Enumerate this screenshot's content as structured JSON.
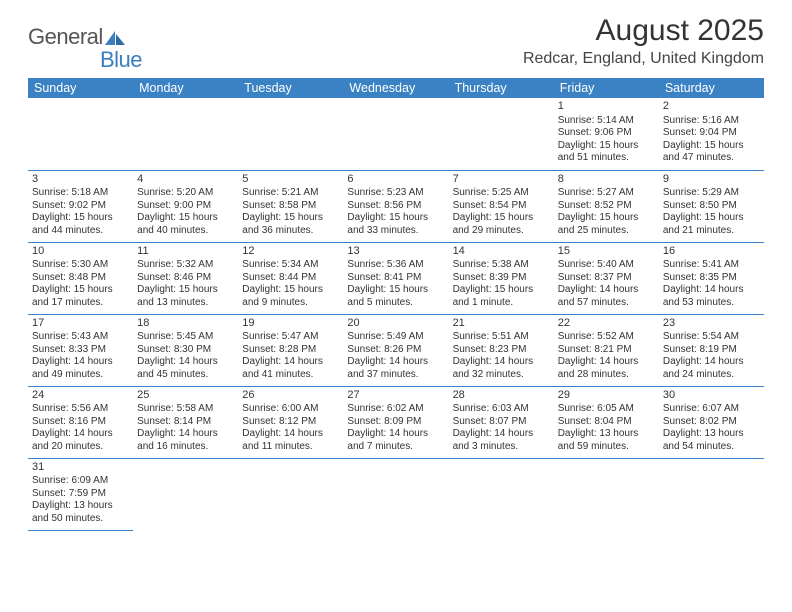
{
  "logo": {
    "name": "General",
    "suffix": "Blue"
  },
  "title": "August 2025",
  "location": "Redcar, England, United Kingdom",
  "colors": {
    "header_bg": "#3b82c4",
    "header_fg": "#ffffff",
    "border": "#3b82c4",
    "text": "#333333"
  },
  "weekdays": [
    "Sunday",
    "Monday",
    "Tuesday",
    "Wednesday",
    "Thursday",
    "Friday",
    "Saturday"
  ],
  "weeks": [
    [
      null,
      null,
      null,
      null,
      null,
      {
        "n": "1",
        "sr": "5:14 AM",
        "ss": "9:06 PM",
        "dl": "15 hours and 51 minutes."
      },
      {
        "n": "2",
        "sr": "5:16 AM",
        "ss": "9:04 PM",
        "dl": "15 hours and 47 minutes."
      }
    ],
    [
      {
        "n": "3",
        "sr": "5:18 AM",
        "ss": "9:02 PM",
        "dl": "15 hours and 44 minutes."
      },
      {
        "n": "4",
        "sr": "5:20 AM",
        "ss": "9:00 PM",
        "dl": "15 hours and 40 minutes."
      },
      {
        "n": "5",
        "sr": "5:21 AM",
        "ss": "8:58 PM",
        "dl": "15 hours and 36 minutes."
      },
      {
        "n": "6",
        "sr": "5:23 AM",
        "ss": "8:56 PM",
        "dl": "15 hours and 33 minutes."
      },
      {
        "n": "7",
        "sr": "5:25 AM",
        "ss": "8:54 PM",
        "dl": "15 hours and 29 minutes."
      },
      {
        "n": "8",
        "sr": "5:27 AM",
        "ss": "8:52 PM",
        "dl": "15 hours and 25 minutes."
      },
      {
        "n": "9",
        "sr": "5:29 AM",
        "ss": "8:50 PM",
        "dl": "15 hours and 21 minutes."
      }
    ],
    [
      {
        "n": "10",
        "sr": "5:30 AM",
        "ss": "8:48 PM",
        "dl": "15 hours and 17 minutes."
      },
      {
        "n": "11",
        "sr": "5:32 AM",
        "ss": "8:46 PM",
        "dl": "15 hours and 13 minutes."
      },
      {
        "n": "12",
        "sr": "5:34 AM",
        "ss": "8:44 PM",
        "dl": "15 hours and 9 minutes."
      },
      {
        "n": "13",
        "sr": "5:36 AM",
        "ss": "8:41 PM",
        "dl": "15 hours and 5 minutes."
      },
      {
        "n": "14",
        "sr": "5:38 AM",
        "ss": "8:39 PM",
        "dl": "15 hours and 1 minute."
      },
      {
        "n": "15",
        "sr": "5:40 AM",
        "ss": "8:37 PM",
        "dl": "14 hours and 57 minutes."
      },
      {
        "n": "16",
        "sr": "5:41 AM",
        "ss": "8:35 PM",
        "dl": "14 hours and 53 minutes."
      }
    ],
    [
      {
        "n": "17",
        "sr": "5:43 AM",
        "ss": "8:33 PM",
        "dl": "14 hours and 49 minutes."
      },
      {
        "n": "18",
        "sr": "5:45 AM",
        "ss": "8:30 PM",
        "dl": "14 hours and 45 minutes."
      },
      {
        "n": "19",
        "sr": "5:47 AM",
        "ss": "8:28 PM",
        "dl": "14 hours and 41 minutes."
      },
      {
        "n": "20",
        "sr": "5:49 AM",
        "ss": "8:26 PM",
        "dl": "14 hours and 37 minutes."
      },
      {
        "n": "21",
        "sr": "5:51 AM",
        "ss": "8:23 PM",
        "dl": "14 hours and 32 minutes."
      },
      {
        "n": "22",
        "sr": "5:52 AM",
        "ss": "8:21 PM",
        "dl": "14 hours and 28 minutes."
      },
      {
        "n": "23",
        "sr": "5:54 AM",
        "ss": "8:19 PM",
        "dl": "14 hours and 24 minutes."
      }
    ],
    [
      {
        "n": "24",
        "sr": "5:56 AM",
        "ss": "8:16 PM",
        "dl": "14 hours and 20 minutes."
      },
      {
        "n": "25",
        "sr": "5:58 AM",
        "ss": "8:14 PM",
        "dl": "14 hours and 16 minutes."
      },
      {
        "n": "26",
        "sr": "6:00 AM",
        "ss": "8:12 PM",
        "dl": "14 hours and 11 minutes."
      },
      {
        "n": "27",
        "sr": "6:02 AM",
        "ss": "8:09 PM",
        "dl": "14 hours and 7 minutes."
      },
      {
        "n": "28",
        "sr": "6:03 AM",
        "ss": "8:07 PM",
        "dl": "14 hours and 3 minutes."
      },
      {
        "n": "29",
        "sr": "6:05 AM",
        "ss": "8:04 PM",
        "dl": "13 hours and 59 minutes."
      },
      {
        "n": "30",
        "sr": "6:07 AM",
        "ss": "8:02 PM",
        "dl": "13 hours and 54 minutes."
      }
    ],
    [
      {
        "n": "31",
        "sr": "6:09 AM",
        "ss": "7:59 PM",
        "dl": "13 hours and 50 minutes."
      },
      null,
      null,
      null,
      null,
      null,
      null
    ]
  ],
  "labels": {
    "sunrise": "Sunrise:",
    "sunset": "Sunset:",
    "daylight": "Daylight:"
  }
}
